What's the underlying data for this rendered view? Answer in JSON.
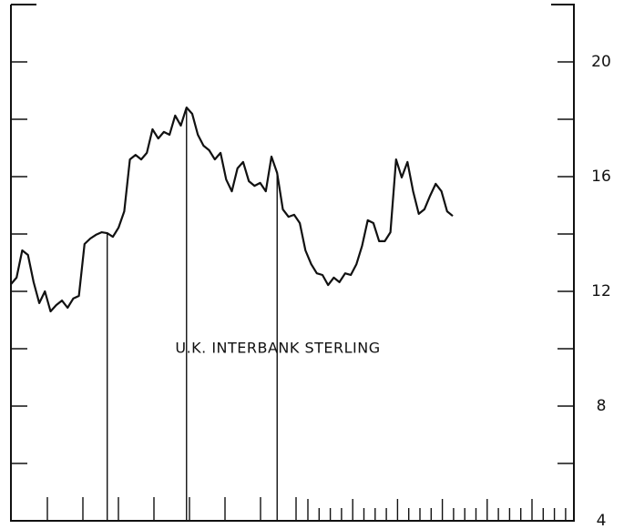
{
  "chart_data": {
    "type": "line",
    "annotation": "U.K. INTERBANK STERLING",
    "series": [
      {
        "color": "#111111",
        "values": [
          12.25,
          12.48,
          13.43,
          13.27,
          12.32,
          11.59,
          12.0,
          11.3,
          11.52,
          11.68,
          11.43,
          11.75,
          11.84,
          13.65,
          13.84,
          13.97,
          14.06,
          14.03,
          13.9,
          14.22,
          14.79,
          16.6,
          16.76,
          16.6,
          16.83,
          17.65,
          17.33,
          17.56,
          17.46,
          18.13,
          17.78,
          18.41,
          18.19,
          17.46,
          17.08,
          16.92,
          16.6,
          16.83,
          15.9,
          15.49,
          16.29,
          16.51,
          15.84,
          15.68,
          15.78,
          15.49,
          16.7,
          16.13,
          14.86,
          14.6,
          14.67,
          14.38,
          13.43,
          12.95,
          12.63,
          12.57,
          12.22,
          12.48,
          12.32,
          12.63,
          12.57,
          12.95,
          13.59,
          14.48,
          14.38,
          13.75,
          13.75,
          14.06,
          16.6,
          15.97,
          16.51,
          15.49,
          14.7,
          14.86,
          15.33,
          15.75,
          15.49,
          14.79,
          14.63
        ]
      }
    ],
    "ylim": [
      4,
      22
    ],
    "yticks": [
      4,
      8,
      12,
      16,
      20
    ],
    "yminorticks": [
      6,
      10,
      14,
      18
    ]
  }
}
